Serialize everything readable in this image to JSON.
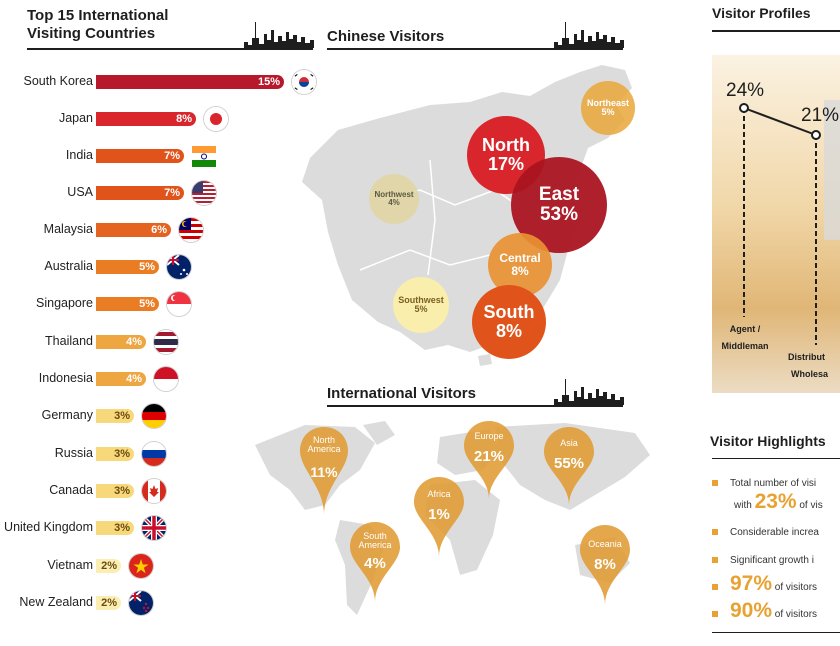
{
  "titles": {
    "top_countries_line1": "Top 15 International",
    "top_countries_line2": "Visiting Countries",
    "chinese_visitors": "Chinese Visitors",
    "international_visitors": "International Visitors",
    "visitor_profiles": "Visitor Profiles",
    "visitor_highlights": "Visitor Highlights"
  },
  "colors": {
    "darkred": "#b7182b",
    "red": "#d8262c",
    "orange": "#e0541c",
    "lightorange": "#ea7d24",
    "amber": "#eda640",
    "pale": "#f7d87a",
    "palest": "#fbeeb2",
    "map": "#dcdcdc",
    "pin": "#e09b32"
  },
  "chart_data": [
    {
      "type": "bar",
      "title": "Top 15 International Visiting Countries",
      "categories": [
        "South Korea",
        "Japan",
        "India",
        "USA",
        "Malaysia",
        "Australia",
        "Singapore",
        "Thailand",
        "Indonesia",
        "Germany",
        "Russia",
        "Canada",
        "United Kingdom",
        "Vietnam",
        "New Zealand"
      ],
      "values": [
        15,
        8,
        7,
        7,
        6,
        5,
        5,
        4,
        4,
        3,
        3,
        3,
        3,
        2,
        2
      ],
      "labels": [
        "15%",
        "8%",
        "7%",
        "7%",
        "6%",
        "5%",
        "5%",
        "4%",
        "4%",
        "3%",
        "3%",
        "3%",
        "3%",
        "2%",
        "2%"
      ],
      "xlim": [
        0,
        15
      ]
    },
    {
      "type": "bubble-map",
      "title": "Chinese Visitors",
      "regions": [
        {
          "name": "North",
          "label": "17%",
          "value": 17
        },
        {
          "name": "East",
          "label": "53%",
          "value": 53
        },
        {
          "name": "Northeast",
          "label": "5%",
          "value": 5
        },
        {
          "name": "Northwest",
          "label": "4%",
          "value": 4
        },
        {
          "name": "Central",
          "label": "8%",
          "value": 8
        },
        {
          "name": "Southwest",
          "label": "5%",
          "value": 5
        },
        {
          "name": "South",
          "label": "8%",
          "value": 8
        }
      ]
    },
    {
      "type": "pin-map",
      "title": "International Visitors",
      "regions": [
        {
          "name": "North America",
          "label": "11%",
          "value": 11
        },
        {
          "name": "Europe",
          "label": "21%",
          "value": 21
        },
        {
          "name": "Asia",
          "label": "55%",
          "value": 55
        },
        {
          "name": "Africa",
          "label": "1%",
          "value": 1
        },
        {
          "name": "South America",
          "label": "4%",
          "value": 4
        },
        {
          "name": "Oceania",
          "label": "8%",
          "value": 8
        }
      ]
    },
    {
      "type": "line",
      "title": "Visitor Profiles",
      "categories": [
        "Agent / Middleman",
        "Distribut… Wholesa…"
      ],
      "category_lines": [
        [
          "Agent /",
          "Middleman"
        ],
        [
          "Distribut",
          "Wholesa"
        ]
      ],
      "values": [
        24,
        21
      ],
      "labels": [
        "24%",
        "21%"
      ]
    }
  ],
  "highlights": [
    {
      "text": "Total number of visi"
    },
    {
      "prefix": "with ",
      "big": "23%",
      "suffix": " of vis"
    },
    {
      "text": "Considerable increa"
    },
    {
      "text": "Significant growth i"
    },
    {
      "big": "97%",
      "suffix": " of visitors"
    },
    {
      "big": "90%",
      "suffix": " of visitors"
    }
  ]
}
